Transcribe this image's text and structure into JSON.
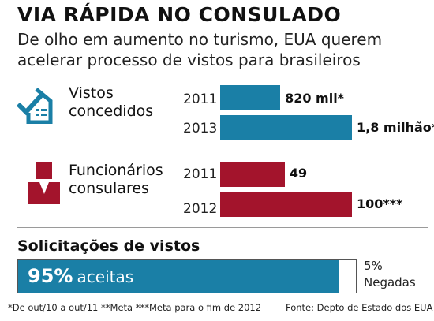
{
  "header": {
    "title": "VIA RÁPIDA NO CONSULADO",
    "subtitle_line1": "De olho em aumento no turismo, EUA querem",
    "subtitle_line2": "acelerar processo de vistos para brasileiros"
  },
  "chart_data": [
    {
      "type": "bar",
      "orientation": "horizontal",
      "label_line1": "Vistos",
      "label_line2": "concedidos",
      "icon": "house-check-icon",
      "color": "#1a7fa6",
      "categories": [
        "2011",
        "2013"
      ],
      "values": [
        820000,
        1800000
      ],
      "value_labels": [
        "820 mil*",
        "1,8 milhão**"
      ]
    },
    {
      "type": "bar",
      "orientation": "horizontal",
      "label_line1": "Funcionários",
      "label_line2": "consulares",
      "icon": "person-icon",
      "color": "#a3142c",
      "categories": [
        "2011",
        "2012"
      ],
      "values": [
        49,
        100
      ],
      "value_labels": [
        "49",
        "100***"
      ]
    },
    {
      "type": "bar",
      "stacked": true,
      "title": "Solicitações de vistos",
      "color": "#1a7fa6",
      "series": [
        {
          "name": "aceitas",
          "values": [
            95
          ]
        },
        {
          "name": "Negadas",
          "values": [
            5
          ]
        }
      ],
      "accepted_pct_label": "95%",
      "accepted_label": "aceitas",
      "denied_pct_label": "5%",
      "denied_label": "Negadas"
    }
  ],
  "footer": {
    "notes": "*De out/10 a out/11  **Meta ***Meta para o fim de 2012",
    "source": "Fonte: Depto de Estado dos EUA"
  }
}
